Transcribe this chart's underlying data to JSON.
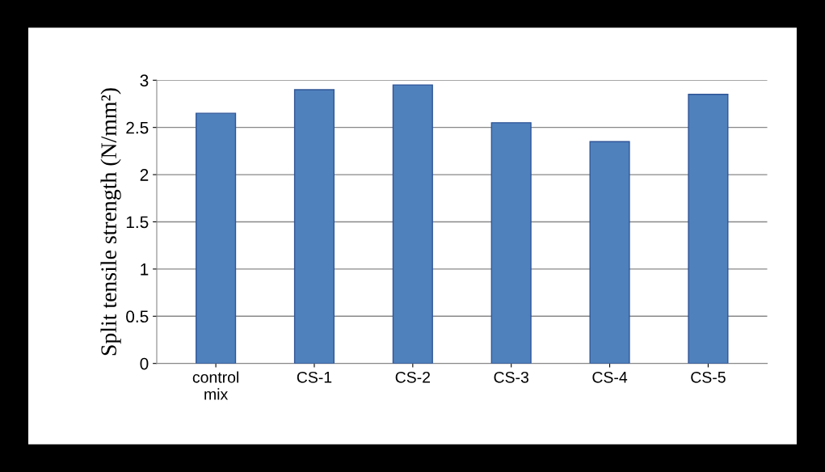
{
  "chart_data": {
    "type": "bar",
    "ylabel": "Split tensile strength (N/mm²)",
    "categories": [
      "control\nmix",
      "CS-1",
      "CS-2",
      "CS-3",
      "CS-4",
      "CS-5"
    ],
    "values": [
      2.65,
      2.9,
      2.95,
      2.55,
      2.35,
      2.85
    ],
    "color": "#4f81bd",
    "ylim": [
      0,
      3
    ],
    "yticks": [
      0,
      0.5,
      1,
      1.5,
      2,
      2.5,
      3
    ],
    "grid": "y",
    "legend": false
  }
}
